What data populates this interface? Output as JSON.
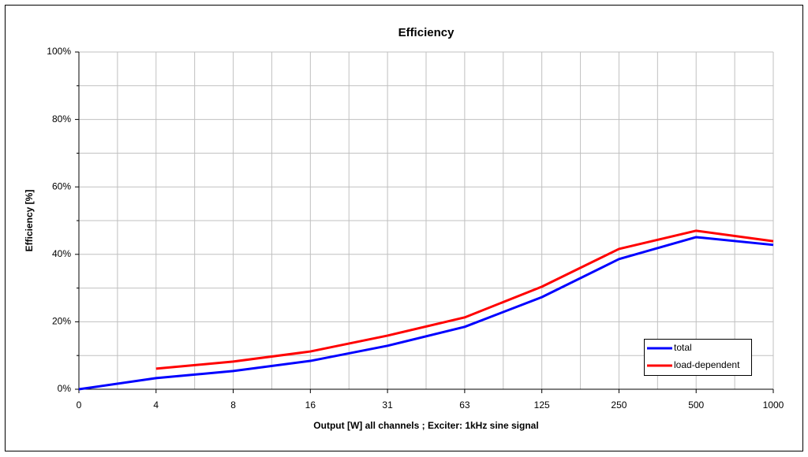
{
  "chart_data": {
    "type": "line",
    "title": "Efficiency",
    "x_label": "Output [W]  all channels  ;  Exciter: 1kHz sine signal",
    "y_label": "Efficiency [%]",
    "categories": [
      "0",
      "4",
      "8",
      "16",
      "31",
      "63",
      "125",
      "250",
      "500",
      "1000"
    ],
    "series": [
      {
        "name": "total",
        "color": "#0000ff",
        "values": [
          0,
          3.3,
          5.4,
          8.4,
          12.9,
          18.5,
          27.3,
          38.6,
          45.1,
          42.8
        ]
      },
      {
        "name": "load-dependent",
        "color": "#ff0000",
        "values": [
          null,
          6.1,
          8.2,
          11.2,
          15.9,
          21.3,
          30.4,
          41.6,
          47.0,
          43.9
        ]
      }
    ],
    "ylim": [
      0,
      100
    ],
    "yticks": [
      {
        "value": 0,
        "label": "0%"
      },
      {
        "value": 20,
        "label": "20%"
      },
      {
        "value": 40,
        "label": "40%"
      },
      {
        "value": 60,
        "label": "60%"
      },
      {
        "value": 80,
        "label": "80%"
      },
      {
        "value": 100,
        "label": "100%"
      }
    ],
    "grid": true,
    "legend": "lower right"
  }
}
